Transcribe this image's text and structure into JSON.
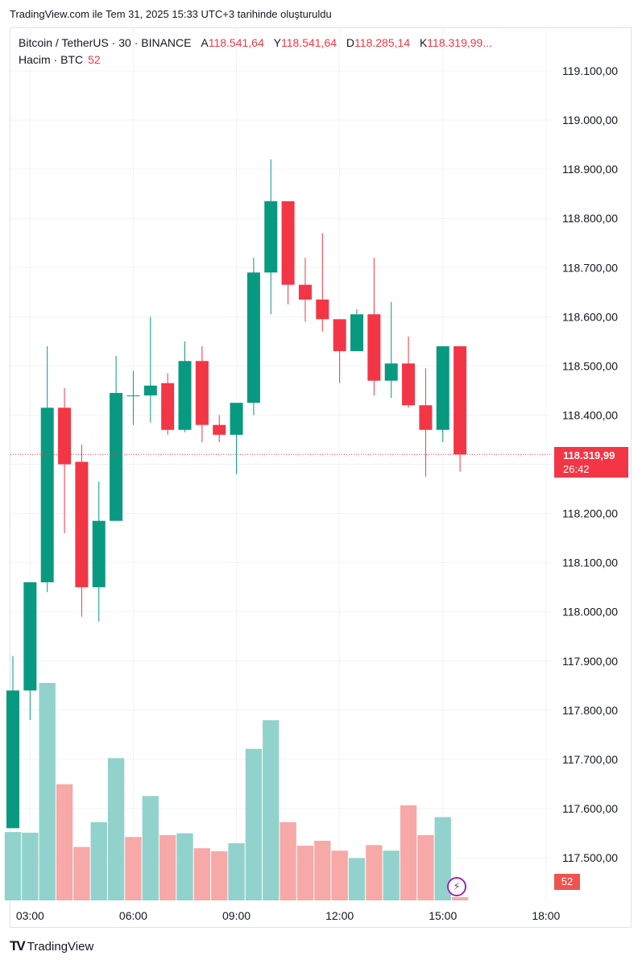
{
  "caption": "TradingView.com ile Tem 31, 2025 15:33 UTC+3 tarihinde oluşturuldu",
  "legend": {
    "symbol": "Bitcoin / TetherUS · 30 · BINANCE",
    "open_label": "A",
    "open": "118.541,64",
    "high_label": "Y",
    "high": "118.541,64",
    "low_label": "D",
    "low": "118.285,14",
    "close_label": "K",
    "close": "118.319,99...",
    "volume_label": "Hacim · BTC",
    "volume": "52"
  },
  "price_tag": {
    "price": "118.319,99",
    "countdown": "26:42"
  },
  "volume_tag": "52",
  "bolt_icon": "⚡",
  "brand": {
    "logo": "TV",
    "name": "TradingView"
  },
  "colors": {
    "up": "#089981",
    "down": "#f23645",
    "vol_up": "#92d2cc",
    "vol_down": "#f7a9a7",
    "grid": "#f0f3fa"
  },
  "chart_data": {
    "type": "candlestick",
    "price_ticks": [
      "119.100,00",
      "119.000,00",
      "118.900,00",
      "118.800,00",
      "118.700,00",
      "118.600,00",
      "118.500,00",
      "118.400,00",
      "118.200,00",
      "118.100,00",
      "118.000,00",
      "117.900,00",
      "117.800,00",
      "117.700,00",
      "117.600,00",
      "117.500,00"
    ],
    "price_tick_values": [
      119100,
      119000,
      118900,
      118800,
      118700,
      118600,
      118500,
      118400,
      118200,
      118100,
      118000,
      117900,
      117800,
      117700,
      117600,
      117500
    ],
    "time_ticks": [
      {
        "label": "03:00",
        "slot": 1
      },
      {
        "label": "06:00",
        "slot": 7
      },
      {
        "label": "09:00",
        "slot": 13
      },
      {
        "label": "12:00",
        "slot": 19
      },
      {
        "label": "15:00",
        "slot": 25
      },
      {
        "label": "18:00",
        "slot": 31
      }
    ],
    "ylim": [
      117440,
      119200
    ],
    "current_price": 118319.99,
    "candles": [
      {
        "o": 117560,
        "h": 117910,
        "l": 117560,
        "c": 117840
      },
      {
        "o": 117840,
        "h": 118060,
        "l": 117780,
        "c": 118060
      },
      {
        "o": 118060,
        "h": 118540,
        "l": 118040,
        "c": 118415
      },
      {
        "o": 118415,
        "h": 118455,
        "l": 118160,
        "c": 118300
      },
      {
        "o": 118305,
        "h": 118340,
        "l": 117990,
        "c": 118050
      },
      {
        "o": 118050,
        "h": 118265,
        "l": 117980,
        "c": 118185
      },
      {
        "o": 118185,
        "h": 118520,
        "l": 118185,
        "c": 118445
      },
      {
        "o": 118440,
        "h": 118490,
        "l": 118380,
        "c": 118440
      },
      {
        "o": 118440,
        "h": 118600,
        "l": 118385,
        "c": 118460
      },
      {
        "o": 118465,
        "h": 118485,
        "l": 118360,
        "c": 118370
      },
      {
        "o": 118370,
        "h": 118550,
        "l": 118365,
        "c": 118510
      },
      {
        "o": 118510,
        "h": 118540,
        "l": 118345,
        "c": 118380
      },
      {
        "o": 118380,
        "h": 118400,
        "l": 118345,
        "c": 118360
      },
      {
        "o": 118360,
        "h": 118420,
        "l": 118280,
        "c": 118425
      },
      {
        "o": 118425,
        "h": 118720,
        "l": 118400,
        "c": 118690
      },
      {
        "o": 118690,
        "h": 118920,
        "l": 118605,
        "c": 118835
      },
      {
        "o": 118835,
        "h": 118835,
        "l": 118625,
        "c": 118665
      },
      {
        "o": 118665,
        "h": 118720,
        "l": 118590,
        "c": 118635
      },
      {
        "o": 118635,
        "h": 118770,
        "l": 118570,
        "c": 118595
      },
      {
        "o": 118595,
        "h": 118595,
        "l": 118465,
        "c": 118530
      },
      {
        "o": 118530,
        "h": 118615,
        "l": 118530,
        "c": 118605
      },
      {
        "o": 118605,
        "h": 118720,
        "l": 118440,
        "c": 118470
      },
      {
        "o": 118470,
        "h": 118630,
        "l": 118435,
        "c": 118505
      },
      {
        "o": 118505,
        "h": 118560,
        "l": 118415,
        "c": 118420
      },
      {
        "o": 118420,
        "h": 118495,
        "l": 118275,
        "c": 118370
      },
      {
        "o": 118370,
        "h": 118540,
        "l": 118345,
        "c": 118540
      },
      {
        "o": 118540,
        "h": 118540,
        "l": 118285,
        "c": 118320
      }
    ],
    "volumes": [
      {
        "v": 1100,
        "up": true
      },
      {
        "v": 1090,
        "up": true
      },
      {
        "v": 3500,
        "up": true
      },
      {
        "v": 1870,
        "up": false
      },
      {
        "v": 860,
        "up": false
      },
      {
        "v": 1260,
        "up": true
      },
      {
        "v": 2290,
        "up": true
      },
      {
        "v": 1020,
        "up": false
      },
      {
        "v": 1680,
        "up": true
      },
      {
        "v": 1050,
        "up": false
      },
      {
        "v": 1080,
        "up": true
      },
      {
        "v": 840,
        "up": false
      },
      {
        "v": 790,
        "up": false
      },
      {
        "v": 920,
        "up": true
      },
      {
        "v": 2440,
        "up": true
      },
      {
        "v": 2900,
        "up": true
      },
      {
        "v": 1260,
        "up": false
      },
      {
        "v": 880,
        "up": false
      },
      {
        "v": 960,
        "up": false
      },
      {
        "v": 800,
        "up": false
      },
      {
        "v": 680,
        "up": true
      },
      {
        "v": 890,
        "up": false
      },
      {
        "v": 800,
        "up": true
      },
      {
        "v": 1530,
        "up": false
      },
      {
        "v": 1050,
        "up": false
      },
      {
        "v": 1340,
        "up": true
      },
      {
        "v": 52,
        "up": false
      }
    ],
    "volume_max": 3500
  }
}
